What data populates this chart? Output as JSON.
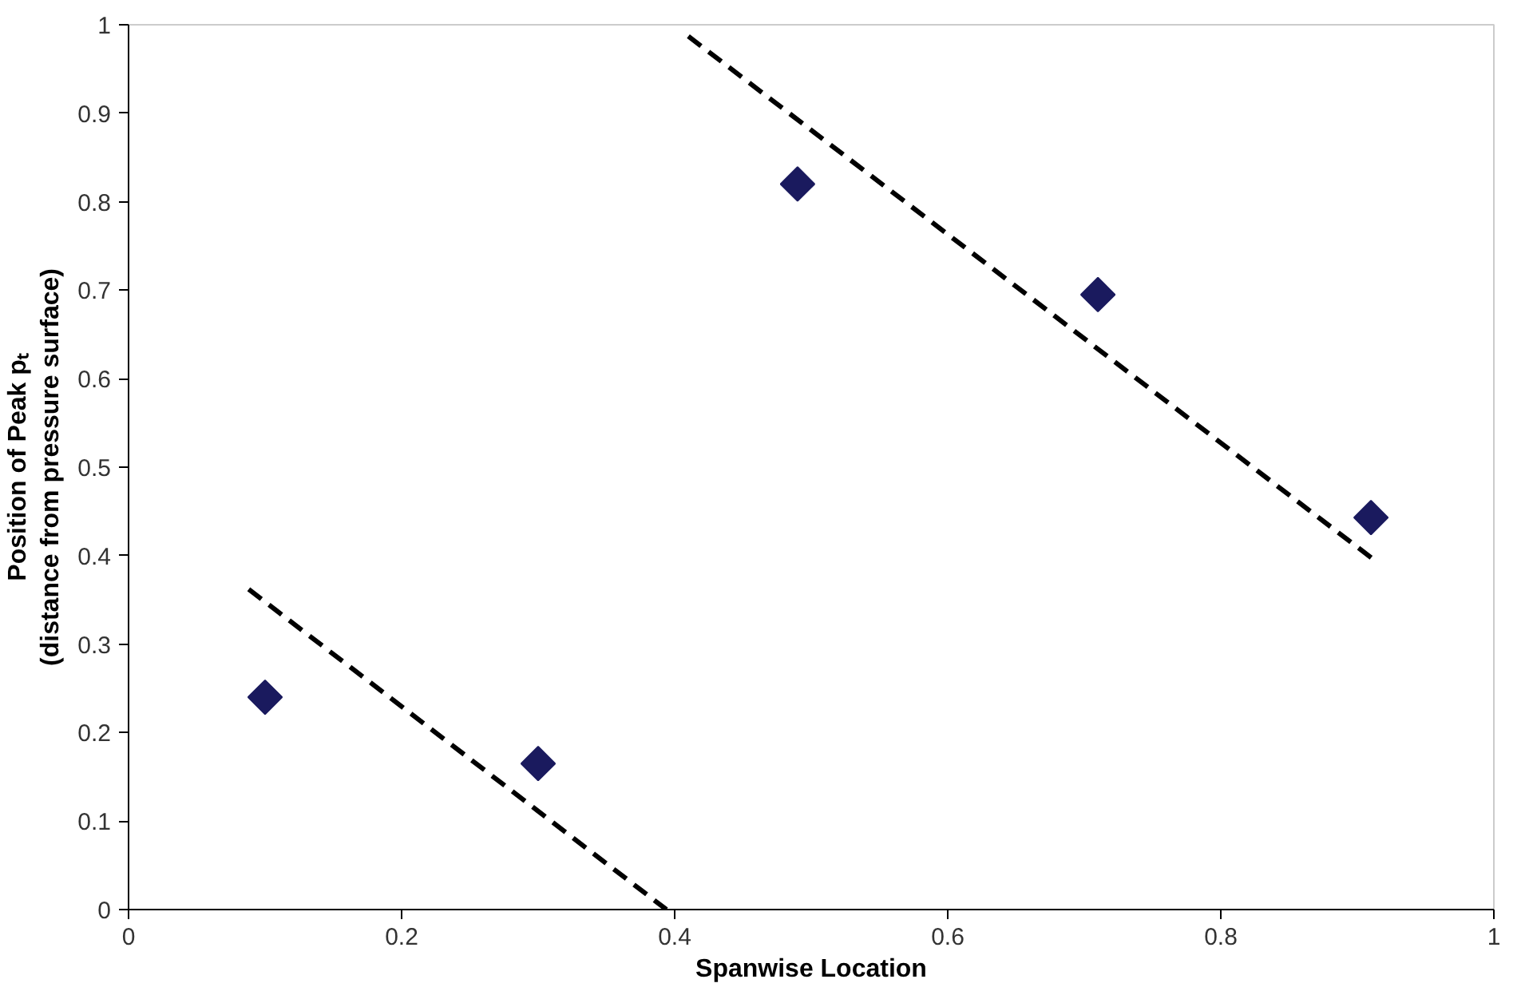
{
  "chart_data": {
    "type": "scatter",
    "xlabel": "Spanwise Location",
    "ylabel": "Position of Peak pₜ\n(distance from pressure surface)",
    "xlim": [
      0,
      1
    ],
    "ylim": [
      0,
      1
    ],
    "xticks": [
      0,
      0.2,
      0.4,
      0.6,
      0.8,
      1
    ],
    "yticks": [
      0,
      0.1,
      0.2,
      0.3,
      0.4,
      0.5,
      0.6,
      0.7,
      0.8,
      0.9,
      1
    ],
    "grid": false,
    "marker": "diamond",
    "series": [
      {
        "color": "#1a1a5e",
        "x": [
          0.1,
          0.3,
          0.49,
          0.71,
          0.91
        ],
        "values": [
          0.24,
          0.165,
          0.82,
          0.695,
          0.443
        ]
      },
      {
        "type": "line",
        "color": "#000000",
        "line_style": "dashed",
        "marker": "none",
        "x": [
          0.088,
          0.394
        ],
        "values": [
          0.362,
          0
        ]
      },
      {
        "type": "line",
        "color": "#000000",
        "line_style": "dashed",
        "marker": "none",
        "x": [
          0.41,
          0.915
        ],
        "values": [
          0.987,
          0.392
        ]
      }
    ]
  }
}
